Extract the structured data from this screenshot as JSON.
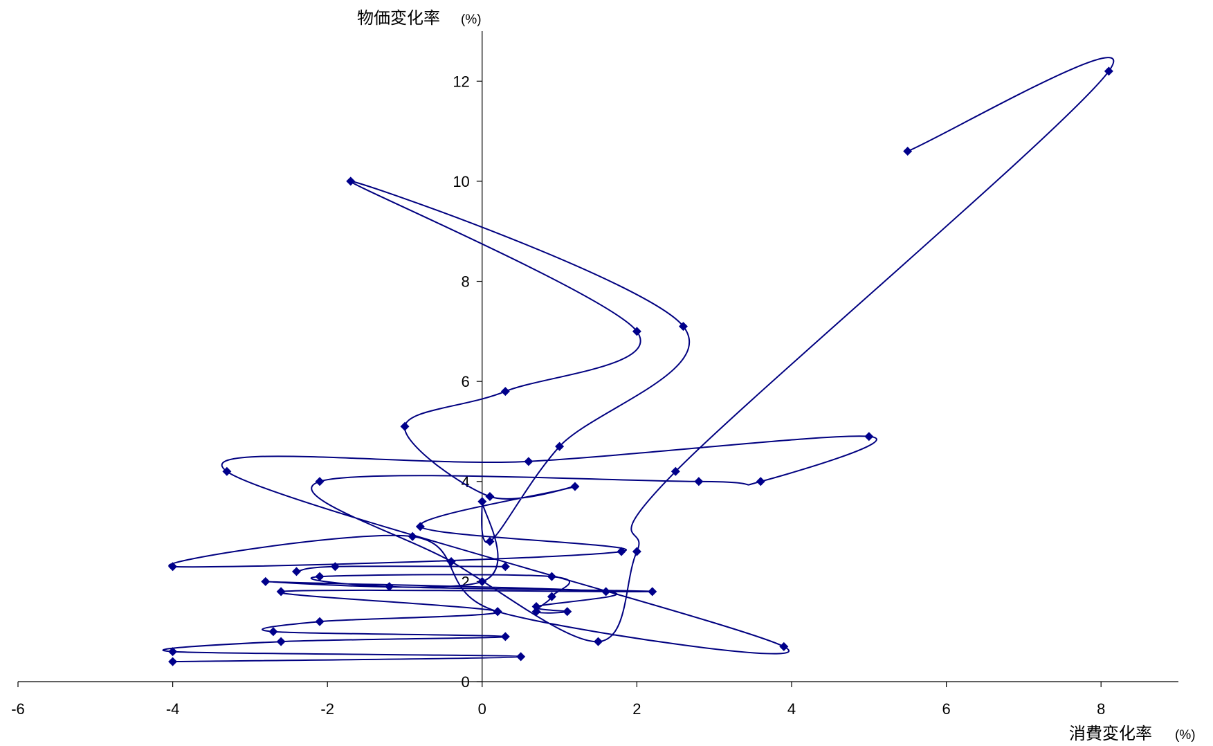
{
  "chart_data": {
    "type": "scatter",
    "xlabel": "消費変化率",
    "xunit": "(%)",
    "ylabel": "物価変化率",
    "yunit": "(%)",
    "xlim": [
      -6,
      9
    ],
    "ylim": [
      0,
      13
    ],
    "xticks": [
      "-6",
      "-4",
      "-2",
      "0",
      "2",
      "4",
      "6",
      "8"
    ],
    "yticks": [
      "0",
      "2",
      "4",
      "6",
      "8",
      "10",
      "12"
    ],
    "marker_color": "#00008b",
    "line_color": "#000080",
    "connected": true,
    "smooth": true,
    "series": [
      {
        "points": [
          [
            5.5,
            10.6
          ],
          [
            8.1,
            12.2
          ],
          [
            2.5,
            4.2
          ],
          [
            2.0,
            2.6
          ],
          [
            1.5,
            0.8
          ],
          [
            -0.4,
            2.4
          ],
          [
            -2.1,
            4.0
          ],
          [
            2.8,
            4.0
          ],
          [
            3.6,
            4.0
          ],
          [
            5.0,
            4.9
          ],
          [
            0.6,
            4.4
          ],
          [
            -3.3,
            4.2
          ],
          [
            3.9,
            0.7
          ],
          [
            0.2,
            1.4
          ],
          [
            -0.9,
            2.9
          ],
          [
            -4.0,
            2.3
          ],
          [
            1.8,
            2.6
          ],
          [
            -0.8,
            3.1
          ],
          [
            1.2,
            3.9
          ],
          [
            0.1,
            3.7
          ],
          [
            -1.0,
            5.1
          ],
          [
            0.3,
            5.8
          ],
          [
            2.0,
            7.0
          ],
          [
            -1.7,
            10.0
          ],
          [
            2.6,
            7.1
          ],
          [
            1.0,
            4.7
          ],
          [
            0.1,
            2.8
          ],
          [
            0.0,
            3.6
          ],
          [
            0.0,
            2.0
          ],
          [
            -2.8,
            2.0
          ],
          [
            1.6,
            1.8
          ],
          [
            0.7,
            1.5
          ],
          [
            1.1,
            1.4
          ],
          [
            0.7,
            1.4
          ],
          [
            0.9,
            1.7
          ],
          [
            0.9,
            2.1
          ],
          [
            -2.1,
            2.1
          ],
          [
            -1.2,
            1.9
          ],
          [
            2.2,
            1.8
          ],
          [
            -2.6,
            1.8
          ],
          [
            0.2,
            1.4
          ],
          [
            -2.1,
            1.2
          ],
          [
            -2.7,
            1.0
          ],
          [
            0.3,
            0.9
          ],
          [
            -2.6,
            0.8
          ],
          [
            -4.0,
            0.6
          ],
          [
            0.5,
            0.5
          ],
          [
            -4.0,
            0.4
          ]
        ]
      },
      {
        "points": [
          [
            -2.4,
            2.2
          ],
          [
            -1.9,
            2.3
          ],
          [
            0.3,
            2.3
          ]
        ]
      }
    ]
  }
}
